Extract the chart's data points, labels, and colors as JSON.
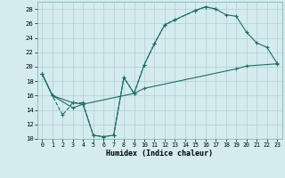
{
  "xlabel": "Humidex (Indice chaleur)",
  "xlim": [
    -0.5,
    23.5
  ],
  "ylim": [
    10,
    29
  ],
  "yticks": [
    10,
    12,
    14,
    16,
    18,
    20,
    22,
    24,
    26,
    28
  ],
  "xticks": [
    0,
    1,
    2,
    3,
    4,
    5,
    6,
    7,
    8,
    9,
    10,
    11,
    12,
    13,
    14,
    15,
    16,
    17,
    18,
    19,
    20,
    21,
    22,
    23
  ],
  "bg_color": "#d4ecee",
  "grid_color": "#b0cfd1",
  "line_color": "#1e6b6b",
  "line1_x": [
    0,
    1,
    2,
    3,
    4,
    5,
    6,
    7,
    8,
    9,
    10,
    11,
    12,
    13,
    15,
    16,
    17
  ],
  "line1_y": [
    19.0,
    16.0,
    13.3,
    15.0,
    15.0,
    10.5,
    10.3,
    10.5,
    18.5,
    16.3,
    20.3,
    23.2,
    25.8,
    26.5,
    27.8,
    28.3,
    28.0
  ],
  "line2_x": [
    0,
    1,
    3,
    4,
    9,
    10,
    19,
    20,
    23
  ],
  "line2_y": [
    19.0,
    16.0,
    14.3,
    14.8,
    16.3,
    17.0,
    19.7,
    20.1,
    20.4
  ],
  "line3_x": [
    0,
    1,
    3,
    4,
    5,
    6,
    7,
    8,
    9,
    10,
    11,
    12,
    13,
    15,
    16,
    17,
    18,
    19,
    20,
    21,
    22,
    23
  ],
  "line3_y": [
    19.0,
    16.0,
    15.0,
    14.8,
    10.5,
    10.3,
    10.5,
    18.5,
    16.3,
    20.3,
    23.2,
    25.8,
    26.5,
    27.8,
    28.3,
    28.0,
    27.2,
    27.0,
    24.8,
    23.3,
    22.7,
    20.5
  ]
}
